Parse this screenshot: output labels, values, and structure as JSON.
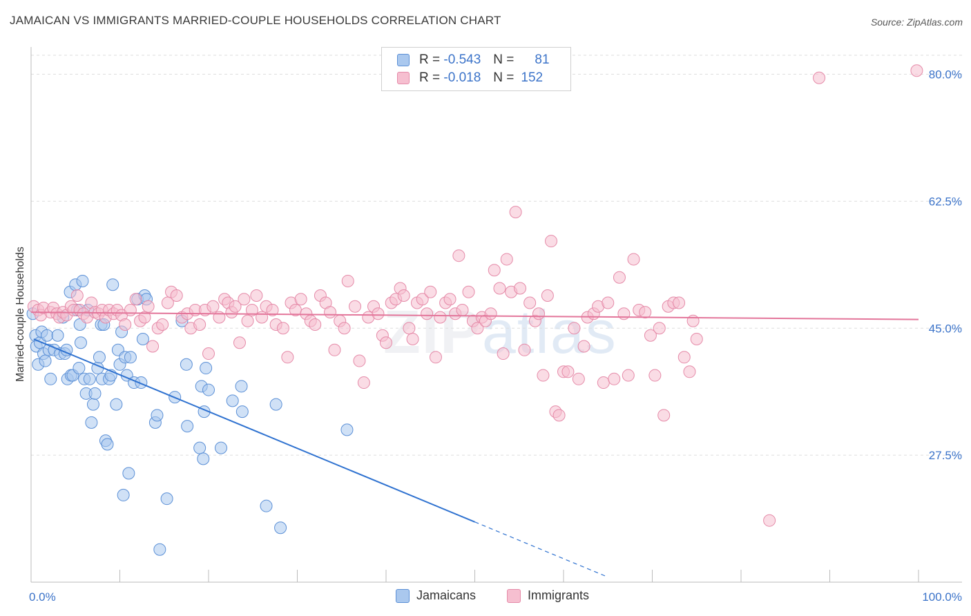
{
  "header": {
    "title": "JAMAICAN VS IMMIGRANTS MARRIED-COUPLE HOUSEHOLDS CORRELATION CHART",
    "source": "Source: ZipAtlas.com"
  },
  "watermark": {
    "zip": "ZIP",
    "atlas": "atlas"
  },
  "legend": {
    "rows": [
      {
        "r_label": "R =",
        "r_value": "-0.543",
        "n_label": "N =",
        "n_value": "81"
      },
      {
        "r_label": "R =",
        "r_value": "-0.018",
        "n_label": "N =",
        "n_value": "152"
      }
    ]
  },
  "colors": {
    "jamaicans_fill": "#aac8ee",
    "jamaicans_stroke": "#5a8fd6",
    "jamaicans_line": "#2f72d0",
    "immigrants_fill": "#f6bfd0",
    "immigrants_stroke": "#e58aa8",
    "immigrants_line": "#e3759a",
    "tick_label": "#3b73c9",
    "grid": "#dddddd"
  },
  "chart_data": {
    "type": "scatter",
    "title": "JAMAICAN VS IMMIGRANTS MARRIED-COUPLE HOUSEHOLDS CORRELATION CHART",
    "xlabel": "",
    "ylabel": "Married-couple Households",
    "xlim": [
      0,
      100
    ],
    "ylim": [
      10,
      83
    ],
    "x_tick_labels": [
      "0.0%",
      "100.0%"
    ],
    "y_ticks": [
      27.5,
      45.0,
      62.5,
      80.0
    ],
    "y_tick_labels": [
      "27.5%",
      "45.0%",
      "62.5%",
      "80.0%"
    ],
    "grid": true,
    "legend_position": "bottom-center",
    "series": [
      {
        "name": "Jamaicans",
        "r": -0.543,
        "n": 81,
        "trend": {
          "x0": 0.3,
          "y0": 43.5,
          "x1": 50,
          "y1": 18.3,
          "dash_to_x": 65,
          "dash_to_y": 10.7
        },
        "points": [
          [
            0.2,
            47
          ],
          [
            0.5,
            44
          ],
          [
            0.6,
            42.5
          ],
          [
            0.8,
            40
          ],
          [
            1,
            43
          ],
          [
            1.2,
            44.5
          ],
          [
            1.4,
            41.5
          ],
          [
            1.6,
            40.5
          ],
          [
            1.8,
            44
          ],
          [
            2,
            42
          ],
          [
            2.2,
            38
          ],
          [
            2.6,
            42
          ],
          [
            3,
            44
          ],
          [
            3.3,
            41.5
          ],
          [
            3.6,
            46.5
          ],
          [
            3.8,
            41.5
          ],
          [
            4,
            42
          ],
          [
            4.1,
            38
          ],
          [
            4.4,
            50
          ],
          [
            4.5,
            38.5
          ],
          [
            4.7,
            38.5
          ],
          [
            5,
            51
          ],
          [
            5.2,
            47.5
          ],
          [
            5.4,
            39.5
          ],
          [
            5.5,
            45.5
          ],
          [
            5.6,
            43
          ],
          [
            5.8,
            51.5
          ],
          [
            6,
            38
          ],
          [
            6.2,
            36
          ],
          [
            6.4,
            47.5
          ],
          [
            6.6,
            38
          ],
          [
            6.8,
            32
          ],
          [
            7,
            34.5
          ],
          [
            7.2,
            36
          ],
          [
            7.5,
            39.5
          ],
          [
            7.7,
            41
          ],
          [
            7.9,
            45.5
          ],
          [
            8,
            38
          ],
          [
            8.2,
            45.5
          ],
          [
            8.4,
            29.5
          ],
          [
            8.6,
            29
          ],
          [
            8.8,
            38
          ],
          [
            9,
            38.5
          ],
          [
            9.2,
            51
          ],
          [
            9.6,
            34.5
          ],
          [
            9.8,
            42
          ],
          [
            10,
            40
          ],
          [
            10.2,
            44.5
          ],
          [
            10.4,
            22
          ],
          [
            10.6,
            41
          ],
          [
            10.8,
            38.5
          ],
          [
            11,
            25
          ],
          [
            11.2,
            41
          ],
          [
            11.6,
            37.5
          ],
          [
            12,
            49
          ],
          [
            12.4,
            37.5
          ],
          [
            12.6,
            43.5
          ],
          [
            12.8,
            49.5
          ],
          [
            13,
            49
          ],
          [
            14,
            32
          ],
          [
            14.2,
            33
          ],
          [
            14.5,
            14.5
          ],
          [
            15.3,
            21.5
          ],
          [
            16.2,
            35.5
          ],
          [
            17,
            46
          ],
          [
            17.5,
            40
          ],
          [
            17.6,
            31.5
          ],
          [
            19,
            28.5
          ],
          [
            19.2,
            37
          ],
          [
            19.4,
            27
          ],
          [
            19.5,
            33.5
          ],
          [
            19.7,
            39.5
          ],
          [
            20,
            36.5
          ],
          [
            21.4,
            28.5
          ],
          [
            22.7,
            35
          ],
          [
            23.7,
            37
          ],
          [
            23.8,
            33.5
          ],
          [
            26.5,
            20.5
          ],
          [
            27.6,
            34.5
          ],
          [
            28.1,
            17.5
          ],
          [
            35.6,
            31
          ]
        ]
      },
      {
        "name": "Immigrants",
        "r": -0.018,
        "n": 152,
        "trend": {
          "x0": 0,
          "y0": 47.2,
          "x1": 100,
          "y1": 46.2
        },
        "points": [
          [
            0.3,
            48
          ],
          [
            0.8,
            47.5
          ],
          [
            1.1,
            46.8
          ],
          [
            1.4,
            47.8
          ],
          [
            2.2,
            47.2
          ],
          [
            2.5,
            47.8
          ],
          [
            2.9,
            47
          ],
          [
            3.2,
            46.5
          ],
          [
            3.6,
            47.2
          ],
          [
            4,
            46.8
          ],
          [
            4.5,
            48
          ],
          [
            4.8,
            47.5
          ],
          [
            5.2,
            49.5
          ],
          [
            5.5,
            47.5
          ],
          [
            5.9,
            47
          ],
          [
            6.3,
            46.5
          ],
          [
            6.8,
            48.5
          ],
          [
            7.2,
            47.2
          ],
          [
            7.6,
            47
          ],
          [
            8,
            47.5
          ],
          [
            8.4,
            46.5
          ],
          [
            8.8,
            47.5
          ],
          [
            9.3,
            47
          ],
          [
            9.7,
            47.5
          ],
          [
            10.2,
            46.8
          ],
          [
            10.6,
            45.5
          ],
          [
            11.2,
            47.5
          ],
          [
            11.8,
            49
          ],
          [
            12.3,
            46
          ],
          [
            12.8,
            46.5
          ],
          [
            13.2,
            48
          ],
          [
            13.7,
            42.5
          ],
          [
            14.3,
            45
          ],
          [
            14.8,
            45.5
          ],
          [
            15.4,
            48.5
          ],
          [
            15.8,
            50
          ],
          [
            16.4,
            49.5
          ],
          [
            17,
            46.5
          ],
          [
            17.6,
            47
          ],
          [
            18,
            45
          ],
          [
            18.5,
            47.5
          ],
          [
            19,
            45.5
          ],
          [
            19.6,
            47.5
          ],
          [
            20,
            41.5
          ],
          [
            20.5,
            48
          ],
          [
            21.2,
            46.5
          ],
          [
            21.8,
            49
          ],
          [
            22.2,
            48.5
          ],
          [
            22.6,
            47.2
          ],
          [
            23,
            48
          ],
          [
            23.5,
            43
          ],
          [
            24,
            49
          ],
          [
            24.4,
            46
          ],
          [
            24.9,
            47.5
          ],
          [
            25.4,
            49.5
          ],
          [
            26,
            46.5
          ],
          [
            26.5,
            48
          ],
          [
            27.2,
            47.5
          ],
          [
            27.6,
            45.5
          ],
          [
            28.4,
            45
          ],
          [
            28.9,
            41
          ],
          [
            29.3,
            48.5
          ],
          [
            29.8,
            47.5
          ],
          [
            30.4,
            49
          ],
          [
            31,
            47
          ],
          [
            31.5,
            46
          ],
          [
            32,
            45.5
          ],
          [
            32.6,
            49.5
          ],
          [
            33.2,
            48.5
          ],
          [
            33.7,
            47.2
          ],
          [
            34.2,
            42
          ],
          [
            34.8,
            46
          ],
          [
            35.3,
            45
          ],
          [
            35.7,
            51.5
          ],
          [
            36.5,
            48
          ],
          [
            37,
            40.5
          ],
          [
            37.5,
            37.5
          ],
          [
            38,
            46.5
          ],
          [
            38.6,
            48
          ],
          [
            39.1,
            47
          ],
          [
            39.6,
            44
          ],
          [
            40,
            43
          ],
          [
            40.6,
            48.5
          ],
          [
            41.1,
            49
          ],
          [
            41.6,
            50.5
          ],
          [
            42,
            49.5
          ],
          [
            42.6,
            45
          ],
          [
            43,
            43.5
          ],
          [
            43.5,
            48.5
          ],
          [
            44.1,
            49
          ],
          [
            44.6,
            47
          ],
          [
            45,
            50
          ],
          [
            45.6,
            41
          ],
          [
            46.1,
            46.5
          ],
          [
            46.7,
            48.5
          ],
          [
            47.2,
            49
          ],
          [
            47.8,
            47
          ],
          [
            48.2,
            55
          ],
          [
            48.6,
            47.5
          ],
          [
            49.3,
            50
          ],
          [
            49.8,
            46
          ],
          [
            50.3,
            45
          ],
          [
            50.8,
            46.5
          ],
          [
            51.2,
            46
          ],
          [
            51.8,
            47
          ],
          [
            52.2,
            53
          ],
          [
            52.8,
            50.5
          ],
          [
            53.2,
            41.5
          ],
          [
            53.6,
            54.5
          ],
          [
            54.1,
            50
          ],
          [
            54.6,
            61
          ],
          [
            55.1,
            50.5
          ],
          [
            55.6,
            42
          ],
          [
            56.2,
            48.5
          ],
          [
            56.8,
            46
          ],
          [
            57.2,
            47
          ],
          [
            57.7,
            38.5
          ],
          [
            58.2,
            49.5
          ],
          [
            58.6,
            57
          ],
          [
            59.1,
            33.5
          ],
          [
            59.5,
            33
          ],
          [
            60,
            39
          ],
          [
            60.5,
            39
          ],
          [
            61.2,
            45
          ],
          [
            61.7,
            38
          ],
          [
            62.3,
            42.5
          ],
          [
            62.7,
            46.5
          ],
          [
            63.4,
            47
          ],
          [
            63.9,
            48
          ],
          [
            64.5,
            37.5
          ],
          [
            65,
            48.5
          ],
          [
            65.7,
            38
          ],
          [
            66.3,
            52
          ],
          [
            66.8,
            47
          ],
          [
            67.3,
            38.5
          ],
          [
            67.9,
            54.5
          ],
          [
            68.5,
            47.5
          ],
          [
            69.2,
            47.2
          ],
          [
            69.8,
            44
          ],
          [
            70.3,
            38.5
          ],
          [
            70.8,
            45
          ],
          [
            71.3,
            33
          ],
          [
            71.8,
            48
          ],
          [
            72.4,
            48.5
          ],
          [
            73,
            48.5
          ],
          [
            73.6,
            41
          ],
          [
            74.2,
            39
          ],
          [
            74.6,
            46
          ],
          [
            75,
            43.5
          ],
          [
            83.2,
            18.5
          ],
          [
            88.8,
            79.5
          ],
          [
            99.8,
            80.5
          ]
        ]
      }
    ]
  },
  "bottom_legend": {
    "jamaicans": "Jamaicans",
    "immigrants": "Immigrants"
  }
}
